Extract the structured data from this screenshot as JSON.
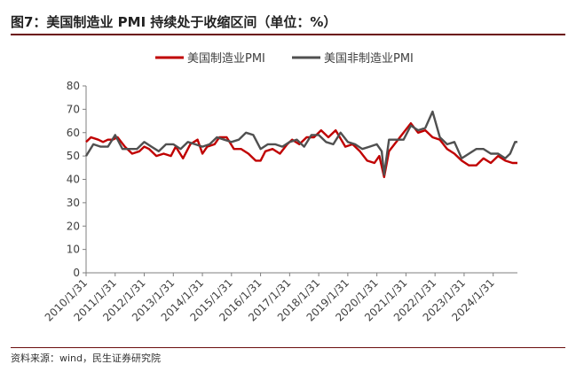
{
  "page": {
    "title": "图7：美国制造业 PMI 持续处于收缩区间（单位：%）",
    "source": "资料来源：wind，民生证券研究院"
  },
  "colors": {
    "manufacturing": "#c00000",
    "non_manufacturing": "#505050",
    "rule": "#6b0d0d"
  },
  "chart_data": {
    "type": "line",
    "title": "",
    "xlabel": "",
    "ylabel": "",
    "ylim": [
      0,
      80
    ],
    "yticks": [
      0,
      10,
      20,
      30,
      40,
      50,
      60,
      70,
      80
    ],
    "x_tick_labels": [
      "2010/1/31",
      "2011/1/31",
      "2012/1/31",
      "2013/1/31",
      "2014/1/31",
      "2015/1/31",
      "2016/1/31",
      "2017/1/31",
      "2018/1/31",
      "2019/1/31",
      "2020/1/31",
      "2021/1/31",
      "2022/1/31",
      "2023/1/31",
      "2024/1/31"
    ],
    "x_range": [
      "2010-01",
      "2024-11"
    ],
    "grid": false,
    "legend_position": "top-center",
    "series": [
      {
        "name": "美国制造业PMI",
        "color": "#c00000",
        "points": [
          [
            "2010-01",
            56
          ],
          [
            "2010-03",
            58
          ],
          [
            "2010-06",
            57
          ],
          [
            "2010-08",
            56
          ],
          [
            "2010-10",
            57
          ],
          [
            "2010-12",
            57
          ],
          [
            "2011-02",
            58
          ],
          [
            "2011-05",
            54
          ],
          [
            "2011-08",
            51
          ],
          [
            "2011-11",
            52
          ],
          [
            "2012-01",
            54
          ],
          [
            "2012-03",
            53
          ],
          [
            "2012-06",
            50
          ],
          [
            "2012-09",
            51
          ],
          [
            "2012-12",
            50
          ],
          [
            "2013-02",
            54
          ],
          [
            "2013-05",
            49
          ],
          [
            "2013-08",
            55
          ],
          [
            "2013-11",
            57
          ],
          [
            "2014-01",
            51
          ],
          [
            "2014-03",
            54
          ],
          [
            "2014-06",
            55
          ],
          [
            "2014-08",
            58
          ],
          [
            "2014-11",
            58
          ],
          [
            "2015-02",
            53
          ],
          [
            "2015-05",
            53
          ],
          [
            "2015-08",
            51
          ],
          [
            "2015-11",
            48
          ],
          [
            "2016-01",
            48
          ],
          [
            "2016-03",
            52
          ],
          [
            "2016-06",
            53
          ],
          [
            "2016-09",
            51
          ],
          [
            "2016-12",
            55
          ],
          [
            "2017-02",
            57
          ],
          [
            "2017-05",
            55
          ],
          [
            "2017-08",
            58
          ],
          [
            "2017-11",
            58
          ],
          [
            "2018-02",
            61
          ],
          [
            "2018-05",
            58
          ],
          [
            "2018-08",
            61
          ],
          [
            "2018-12",
            54
          ],
          [
            "2019-03",
            55
          ],
          [
            "2019-06",
            52
          ],
          [
            "2019-09",
            48
          ],
          [
            "2019-12",
            47
          ],
          [
            "2020-02",
            50
          ],
          [
            "2020-04",
            41
          ],
          [
            "2020-06",
            52
          ],
          [
            "2020-09",
            56
          ],
          [
            "2020-12",
            60
          ],
          [
            "2021-03",
            64
          ],
          [
            "2021-06",
            60
          ],
          [
            "2021-09",
            61
          ],
          [
            "2021-12",
            58
          ],
          [
            "2022-03",
            57
          ],
          [
            "2022-06",
            53
          ],
          [
            "2022-09",
            51
          ],
          [
            "2022-12",
            48
          ],
          [
            "2023-03",
            46
          ],
          [
            "2023-06",
            46
          ],
          [
            "2023-09",
            49
          ],
          [
            "2023-12",
            47
          ],
          [
            "2024-03",
            50
          ],
          [
            "2024-06",
            48
          ],
          [
            "2024-09",
            47
          ],
          [
            "2024-11",
            47
          ]
        ]
      },
      {
        "name": "美国非制造业PMI",
        "color": "#505050",
        "points": [
          [
            "2010-01",
            50
          ],
          [
            "2010-04",
            55
          ],
          [
            "2010-07",
            54
          ],
          [
            "2010-10",
            54
          ],
          [
            "2011-01",
            59
          ],
          [
            "2011-04",
            53
          ],
          [
            "2011-07",
            53
          ],
          [
            "2011-10",
            53
          ],
          [
            "2012-01",
            56
          ],
          [
            "2012-04",
            54
          ],
          [
            "2012-07",
            52
          ],
          [
            "2012-10",
            55
          ],
          [
            "2013-01",
            55
          ],
          [
            "2013-04",
            53
          ],
          [
            "2013-07",
            56
          ],
          [
            "2013-10",
            55
          ],
          [
            "2014-01",
            54
          ],
          [
            "2014-04",
            55
          ],
          [
            "2014-07",
            58
          ],
          [
            "2014-10",
            57
          ],
          [
            "2015-01",
            56
          ],
          [
            "2015-04",
            57
          ],
          [
            "2015-07",
            60
          ],
          [
            "2015-10",
            59
          ],
          [
            "2016-01",
            53
          ],
          [
            "2016-04",
            55
          ],
          [
            "2016-07",
            55
          ],
          [
            "2016-10",
            54
          ],
          [
            "2017-01",
            56
          ],
          [
            "2017-04",
            57
          ],
          [
            "2017-07",
            54
          ],
          [
            "2017-10",
            59
          ],
          [
            "2018-01",
            59
          ],
          [
            "2018-04",
            56
          ],
          [
            "2018-07",
            55
          ],
          [
            "2018-10",
            60
          ],
          [
            "2019-01",
            56
          ],
          [
            "2019-04",
            55
          ],
          [
            "2019-07",
            53
          ],
          [
            "2019-10",
            54
          ],
          [
            "2020-01",
            55
          ],
          [
            "2020-03",
            52
          ],
          [
            "2020-04",
            42
          ],
          [
            "2020-06",
            57
          ],
          [
            "2020-09",
            57
          ],
          [
            "2020-12",
            57
          ],
          [
            "2021-03",
            63
          ],
          [
            "2021-06",
            61
          ],
          [
            "2021-09",
            62
          ],
          [
            "2021-12",
            69
          ],
          [
            "2022-03",
            58
          ],
          [
            "2022-06",
            55
          ],
          [
            "2022-09",
            56
          ],
          [
            "2022-12",
            49
          ],
          [
            "2023-03",
            51
          ],
          [
            "2023-06",
            53
          ],
          [
            "2023-09",
            53
          ],
          [
            "2023-12",
            51
          ],
          [
            "2024-03",
            51
          ],
          [
            "2024-06",
            49
          ],
          [
            "2024-08",
            51
          ],
          [
            "2024-10",
            56
          ],
          [
            "2024-11",
            56
          ]
        ]
      }
    ]
  }
}
